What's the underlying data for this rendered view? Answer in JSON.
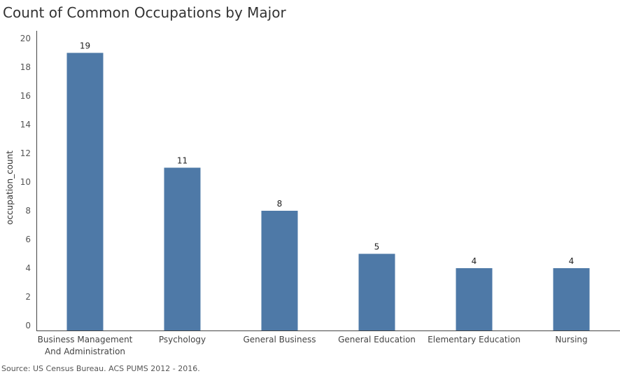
{
  "source_note": "Source: US Census Bureau. ACS PUMS 2012 - 2016.",
  "chart_data": {
    "type": "bar",
    "title": "Count of Common Occupations by Major",
    "xlabel": "",
    "ylabel": "occupation_count",
    "ylim": [
      0,
      21
    ],
    "yticks": [
      0,
      2,
      4,
      6,
      8,
      10,
      12,
      14,
      16,
      18,
      20
    ],
    "categories": [
      [
        "Business Management",
        "And Administration"
      ],
      [
        "Psychology"
      ],
      [
        "General Business"
      ],
      [
        "General Education"
      ],
      [
        "Elementary Education"
      ],
      [
        "Nursing"
      ]
    ],
    "values": [
      19,
      11,
      8,
      5,
      4,
      4
    ],
    "data_labels": [
      "19",
      "11",
      "8",
      "5",
      "4",
      "4"
    ],
    "bar_color": "#4e79a7",
    "grid": false,
    "legend": "none"
  }
}
